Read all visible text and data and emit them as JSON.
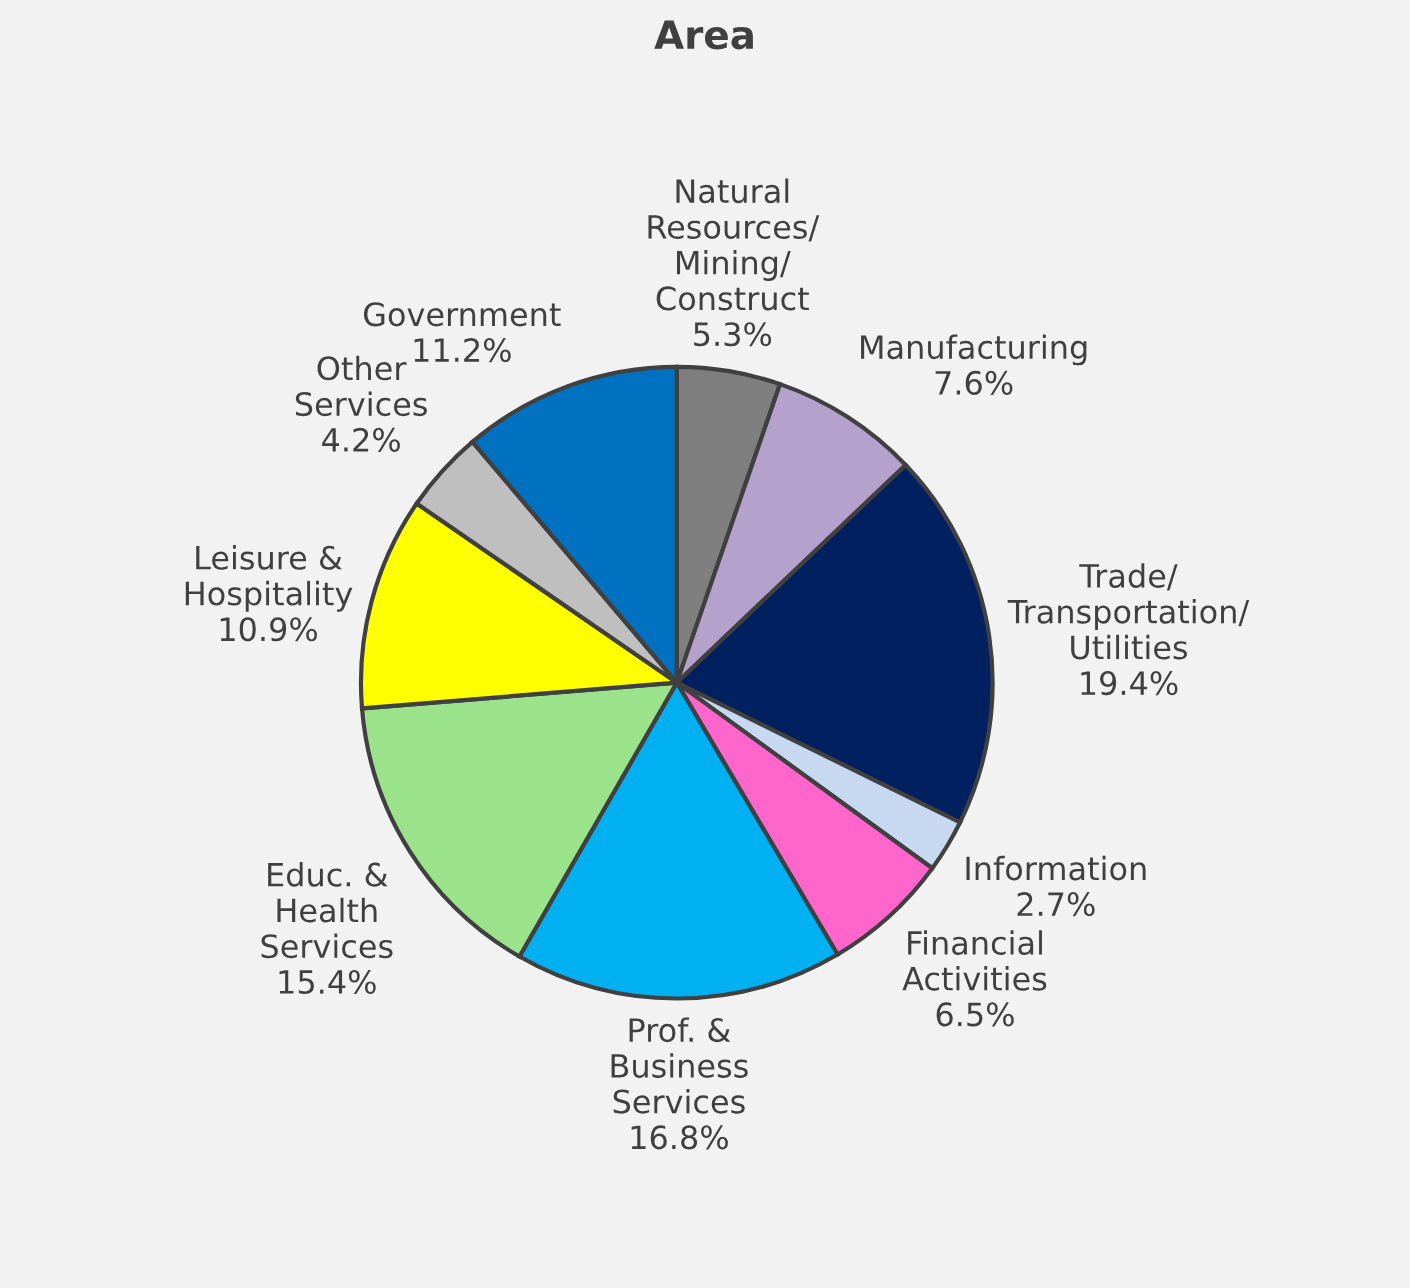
{
  "chart_data": {
    "type": "pie",
    "title": "Area",
    "categories": [
      "Natural Resources/Mining/Construct",
      "Manufacturing",
      "Trade/Transportation/Utilities",
      "Information",
      "Financial Activities",
      "Prof. & Business Services",
      "Educ. & Health Services",
      "Leisure & Hospitality",
      "Other Services",
      "Government"
    ],
    "values": [
      5.3,
      7.6,
      19.4,
      2.7,
      6.5,
      16.8,
      15.4,
      10.9,
      4.2,
      11.2
    ],
    "value_labels": [
      "5.3%",
      "7.6%",
      "19.4%",
      "2.7%",
      "6.5%",
      "16.8%",
      "15.4%",
      "10.9%",
      "4.2%",
      "11.2%"
    ],
    "colors": [
      "#7f7f7f",
      "#b4a2cc",
      "#002060",
      "#c6d9f1",
      "#ff66cc",
      "#00b0f0",
      "#9be38b",
      "#ffff00",
      "#bfbfbf",
      "#0070c0"
    ],
    "legend": false
  }
}
